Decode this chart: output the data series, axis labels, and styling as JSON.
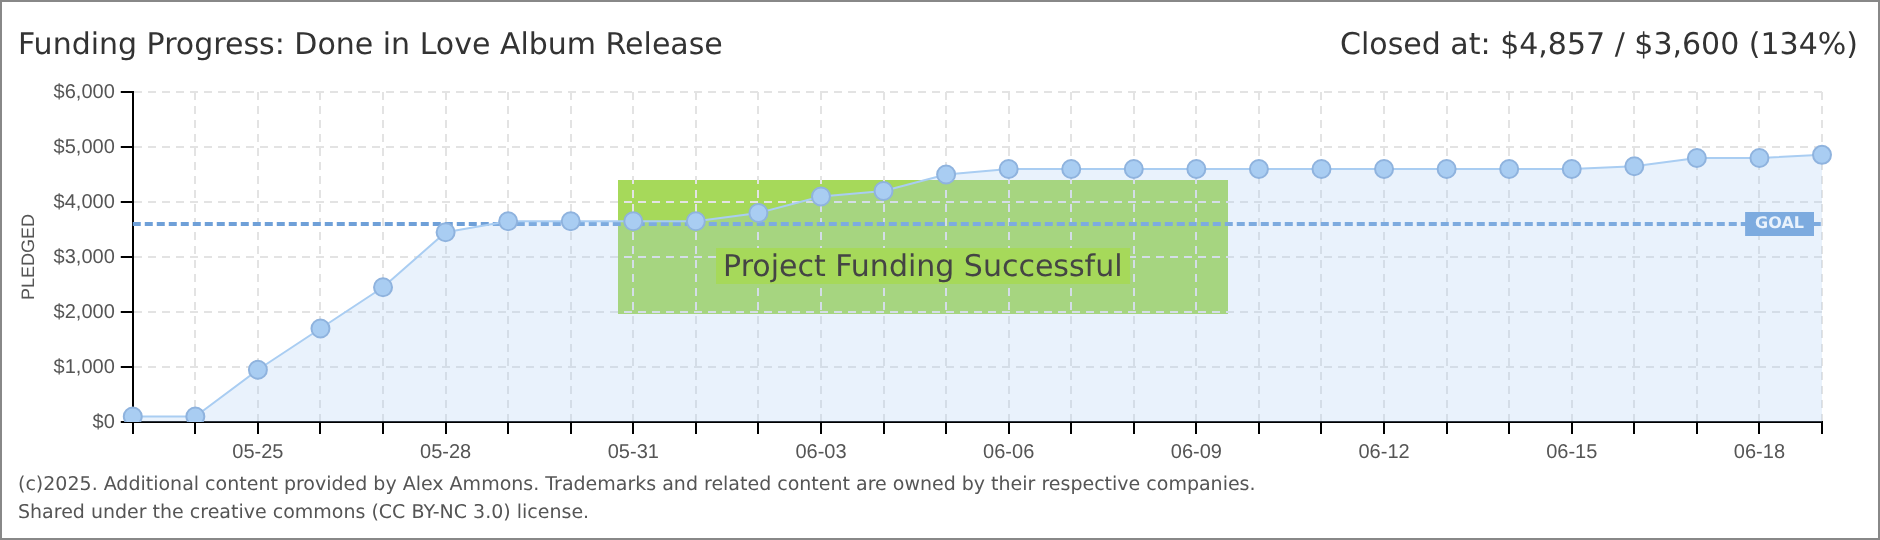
{
  "chart_data": {
    "type": "area",
    "title": "Funding Progress: Done in Love Album Release",
    "subtitle": "Closed at: $4,857 / $3,600 (134%)",
    "ylabel": "PLEDGED",
    "categories": [
      null,
      null,
      "05-25",
      null,
      null,
      "05-28",
      null,
      null,
      "05-31",
      null,
      null,
      "06-03",
      null,
      null,
      "06-06",
      null,
      null,
      "06-09",
      null,
      null,
      "06-12",
      null,
      null,
      "06-15",
      null,
      null,
      "06-18",
      null
    ],
    "series": [
      {
        "color": "#a9cdf2",
        "values": [
          100,
          100,
          950,
          1700,
          2450,
          3450,
          3650,
          3650,
          3650,
          3650,
          3800,
          4100,
          4200,
          4500,
          4600,
          4600,
          4600,
          4600,
          4600,
          4600,
          4600,
          4600,
          4600,
          4600,
          4650,
          4800,
          4800,
          4857
        ]
      }
    ],
    "ylim": [
      0,
      6000
    ],
    "yticks": [
      {
        "value": 0,
        "label": "$0"
      },
      {
        "value": 1000,
        "label": "$1,000"
      },
      {
        "value": 2000,
        "label": "$2,000"
      },
      {
        "value": 3000,
        "label": "$3,000"
      },
      {
        "value": 4000,
        "label": "$4,000"
      },
      {
        "value": 5000,
        "label": "$5,000"
      },
      {
        "value": 6000,
        "label": "$6,000"
      }
    ],
    "ref_lines": [
      {
        "axis": "y",
        "value": 3600,
        "label": "GOAL",
        "color": "#6fa0d8",
        "line_style": "dashed"
      }
    ],
    "annotations": [
      "Project Funding Successful",
      "(c)2025. Additional content provided by Alex Ammons. Trademarks and related content are owned by their respective companies.",
      "Shared under the creative commons (CC BY-NC 3.0) license."
    ],
    "grid": true,
    "marker": "circle",
    "legend": false
  }
}
